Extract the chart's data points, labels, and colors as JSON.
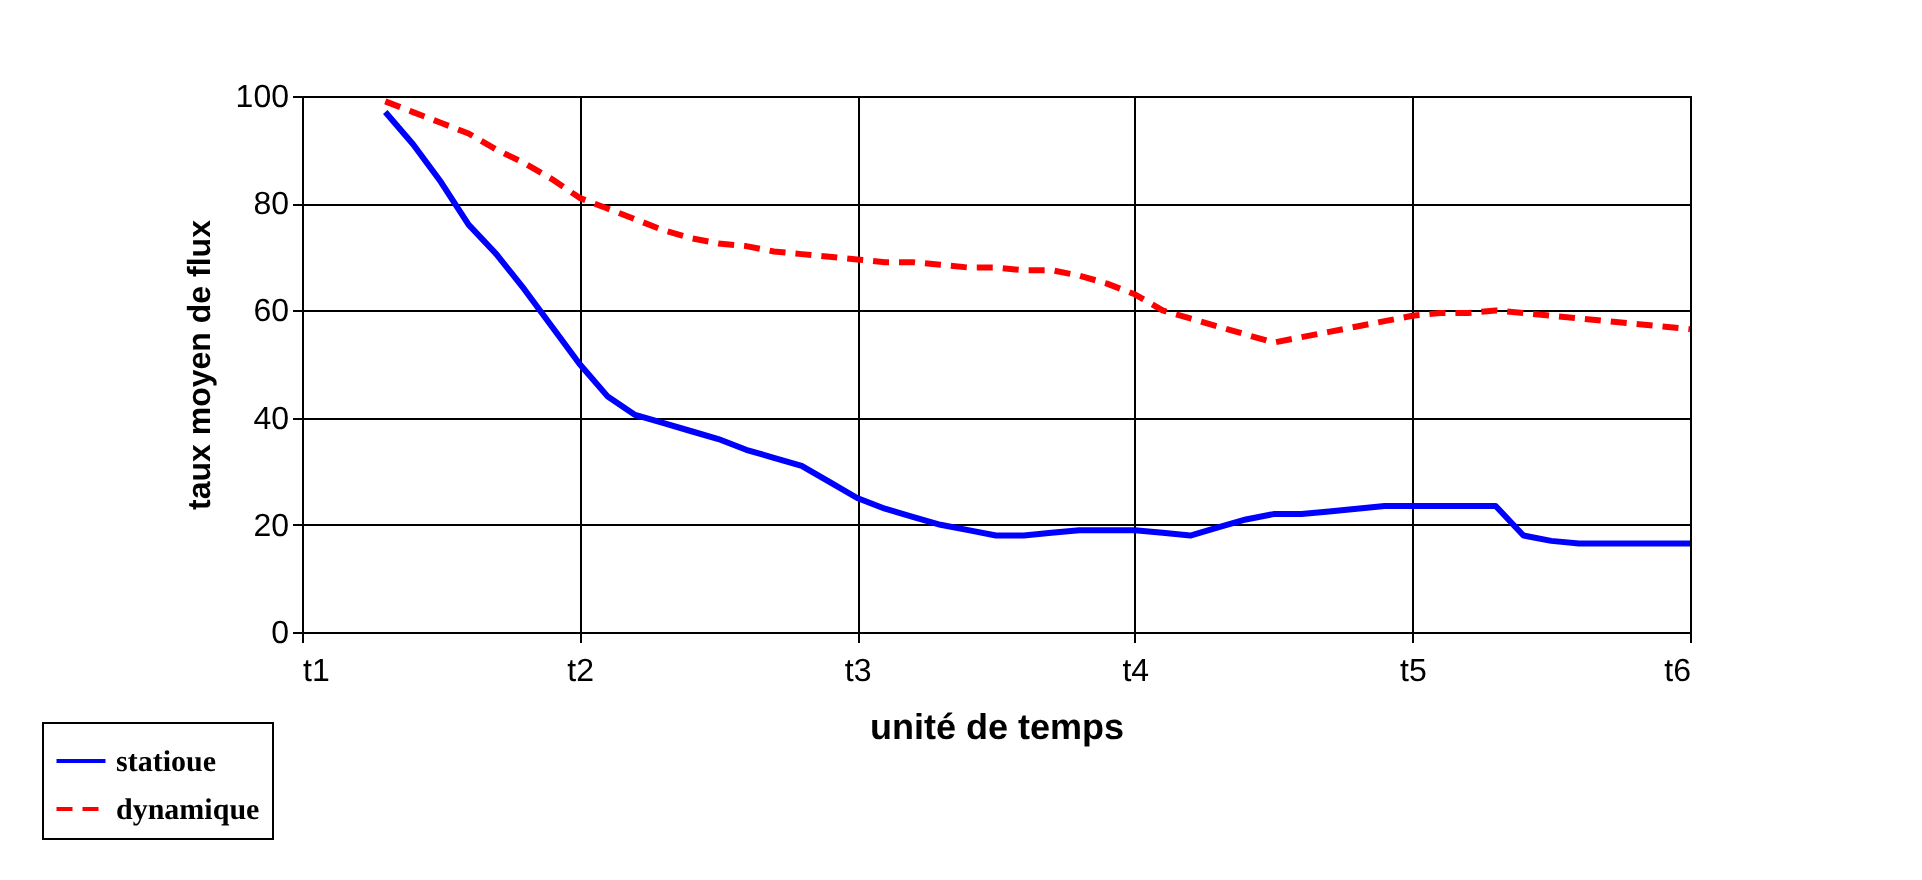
{
  "chart_data": {
    "type": "line",
    "xlabel": "unité de temps",
    "ylabel": "taux moyen de flux",
    "categories": [
      "t1",
      null,
      null,
      null,
      null,
      null,
      null,
      null,
      null,
      null,
      "t2",
      null,
      null,
      null,
      null,
      null,
      null,
      null,
      null,
      null,
      "t3",
      null,
      null,
      null,
      null,
      null,
      null,
      null,
      null,
      null,
      "t4",
      null,
      null,
      null,
      null,
      null,
      null,
      null,
      null,
      null,
      "t5",
      null,
      null,
      null,
      null,
      null,
      null,
      null,
      null,
      null,
      "t6"
    ],
    "ylim": [
      0,
      100
    ],
    "yticks": [
      0,
      20,
      40,
      60,
      80,
      100
    ],
    "grid": true,
    "legend": "bottom left",
    "marker": "none",
    "series": [
      {
        "name": "statioue",
        "color": "#0000ff",
        "line_style": "solid",
        "values": [
          null,
          null,
          null,
          97,
          91,
          84,
          76,
          70.5,
          64,
          57,
          50,
          44,
          40.5,
          39,
          37.5,
          36,
          34,
          32.5,
          31,
          28,
          25,
          23,
          21.5,
          20,
          19,
          18,
          18,
          18.5,
          19,
          19,
          19,
          18.5,
          18,
          19.5,
          21,
          22,
          22,
          22.5,
          23,
          23.5,
          23.5,
          23.5,
          23.5,
          23.5,
          18,
          17,
          16.5,
          16.5,
          16.5,
          16.5,
          16.5
        ]
      },
      {
        "name": "dynamique",
        "color": "#ff0000",
        "line_style": "dashed",
        "values": [
          null,
          null,
          null,
          99,
          97,
          95,
          93,
          90,
          87.5,
          84.5,
          81,
          79,
          77,
          75,
          73.5,
          72.5,
          72,
          71,
          70.5,
          70,
          69.5,
          69,
          69,
          68.5,
          68,
          68,
          67.5,
          67.5,
          66.5,
          65,
          63,
          60,
          58.5,
          57,
          55.5,
          54,
          55,
          56,
          57,
          58,
          59,
          59.5,
          59.5,
          60,
          59.5,
          59,
          58.5,
          58,
          57.5,
          57,
          56.5
        ]
      }
    ]
  }
}
